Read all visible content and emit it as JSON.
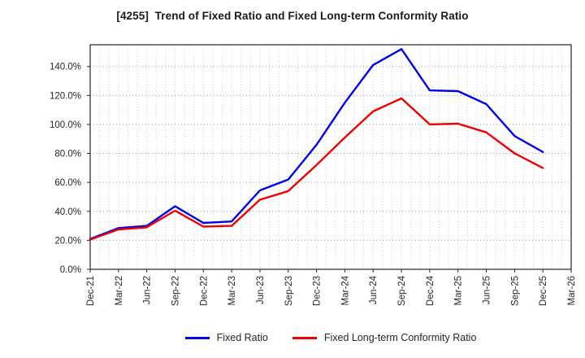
{
  "chart_data": {
    "type": "line",
    "title": "[4255]  Trend of Fixed Ratio and Fixed Long-term Conformity Ratio",
    "categories": [
      "Dec-21",
      "Mar-22",
      "Jun-22",
      "Sep-22",
      "Dec-22",
      "Mar-23",
      "Jun-23",
      "Sep-23",
      "Dec-23",
      "Mar-24",
      "Jun-24",
      "Sep-24",
      "Dec-24",
      "Mar-25",
      "Jun-25",
      "Sep-25",
      "Dec-25",
      "Mar-26"
    ],
    "series": [
      {
        "id": "fixed-ratio",
        "name": "Fixed Ratio",
        "color": "#0000ee",
        "values": [
          21,
          28.5,
          30,
          43.5,
          32,
          33,
          54.5,
          62,
          86,
          115,
          141,
          152,
          123.5,
          123,
          114,
          92,
          81,
          null
        ]
      },
      {
        "id": "fixed-long-term-conformity-ratio",
        "name": "Fixed Long-term Conformity Ratio",
        "color": "#ee0000",
        "values": [
          20.5,
          27.5,
          29,
          40.5,
          29.5,
          30,
          48,
          54,
          72,
          91,
          109,
          118,
          100,
          100.5,
          94.5,
          80,
          70,
          null
        ]
      }
    ],
    "xlabel": "",
    "ylabel": "",
    "ylim": [
      0,
      155
    ],
    "ytick_values": [
      0,
      20,
      40,
      60,
      80,
      100,
      120,
      140
    ],
    "ytick_labels": [
      "0.0%",
      "20.0%",
      "40.0%",
      "60.0%",
      "80.0%",
      "100.0%",
      "120.0%",
      "140.0%"
    ],
    "grid": "dotted",
    "minor_x_divisions_per_interval": 3,
    "legend_position": "bottom"
  },
  "colors": {
    "background": "#ffffff",
    "spine": "#262626",
    "tick_text": "#262626",
    "grid_major_y": "#999999",
    "grid_minor_x": "#c9c9c9"
  }
}
